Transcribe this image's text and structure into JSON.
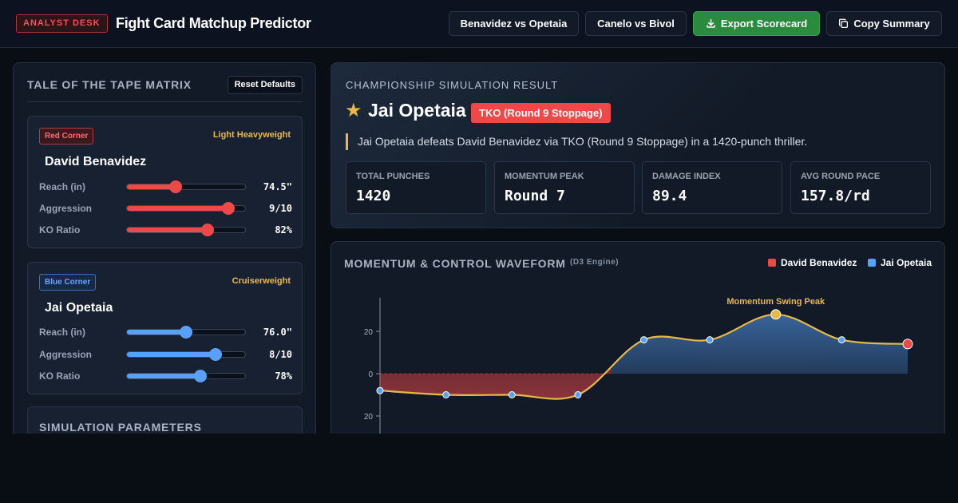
{
  "header": {
    "badge": "ANALYST DESK",
    "title": "Fight Card Matchup Predictor",
    "buttons": {
      "matchup1": "Benavidez vs Opetaia",
      "matchup2": "Canelo vs Bivol",
      "export": "Export Scorecard",
      "copy": "Copy Summary"
    }
  },
  "tape": {
    "title": "TALE OF THE TAPE MATRIX",
    "reset": "Reset Defaults",
    "red": {
      "corner": "Red Corner",
      "weight_class": "Light Heavyweight",
      "name": "David Benavidez",
      "color": "#ef4848",
      "stats": [
        {
          "label": "Reach (in)",
          "value": "74.5\"",
          "level": 0.41
        },
        {
          "label": "Aggression",
          "value": "9/10",
          "level": 0.86
        },
        {
          "label": "KO Ratio",
          "value": "82%",
          "level": 0.68
        }
      ]
    },
    "blue": {
      "corner": "Blue Corner",
      "weight_class": "Cruiserweight",
      "name": "Jai Opetaia",
      "color": "#58a0f8",
      "stats": [
        {
          "label": "Reach (in)",
          "value": "76.0\"",
          "level": 0.5
        },
        {
          "label": "Aggression",
          "value": "8/10",
          "level": 0.75
        },
        {
          "label": "KO Ratio",
          "value": "78%",
          "level": 0.62
        }
      ]
    },
    "sim_params_title": "SIMULATION PARAMETERS"
  },
  "result": {
    "heading": "CHAMPIONSHIP SIMULATION RESULT",
    "winner": "Jai Opetaia",
    "method": "TKO (Round 9 Stoppage)",
    "summary": "Jai Opetaia defeats David Benavidez via TKO (Round 9 Stoppage) in a 1420-punch thriller.",
    "metrics": [
      {
        "label": "TOTAL PUNCHES",
        "value": "1420"
      },
      {
        "label": "MOMENTUM PEAK",
        "value": "Round 7"
      },
      {
        "label": "DAMAGE INDEX",
        "value": "89.4"
      },
      {
        "label": "AVG ROUND PACE",
        "value": "157.8/rd"
      }
    ]
  },
  "chart": {
    "title": "MOMENTUM & CONTROL WAVEFORM",
    "subtitle": "(D3 Engine)",
    "legend": [
      "David Benavidez",
      "Jai Opetaia"
    ]
  },
  "chart_data": {
    "type": "area",
    "annotation": "Momentum Swing Peak",
    "yticks": [
      "20",
      "0",
      "20"
    ],
    "ylim": [
      -35,
      35
    ],
    "x": [
      1,
      2,
      3,
      4,
      5,
      6,
      7,
      8,
      9
    ],
    "values": [
      -8,
      -10,
      -10,
      -10,
      16,
      16,
      28,
      16,
      14
    ],
    "peak_index": 6,
    "end_index": 8,
    "colors": {
      "line": "#e8b849",
      "red": "#ef4848",
      "blue": "#58a0f8"
    }
  }
}
